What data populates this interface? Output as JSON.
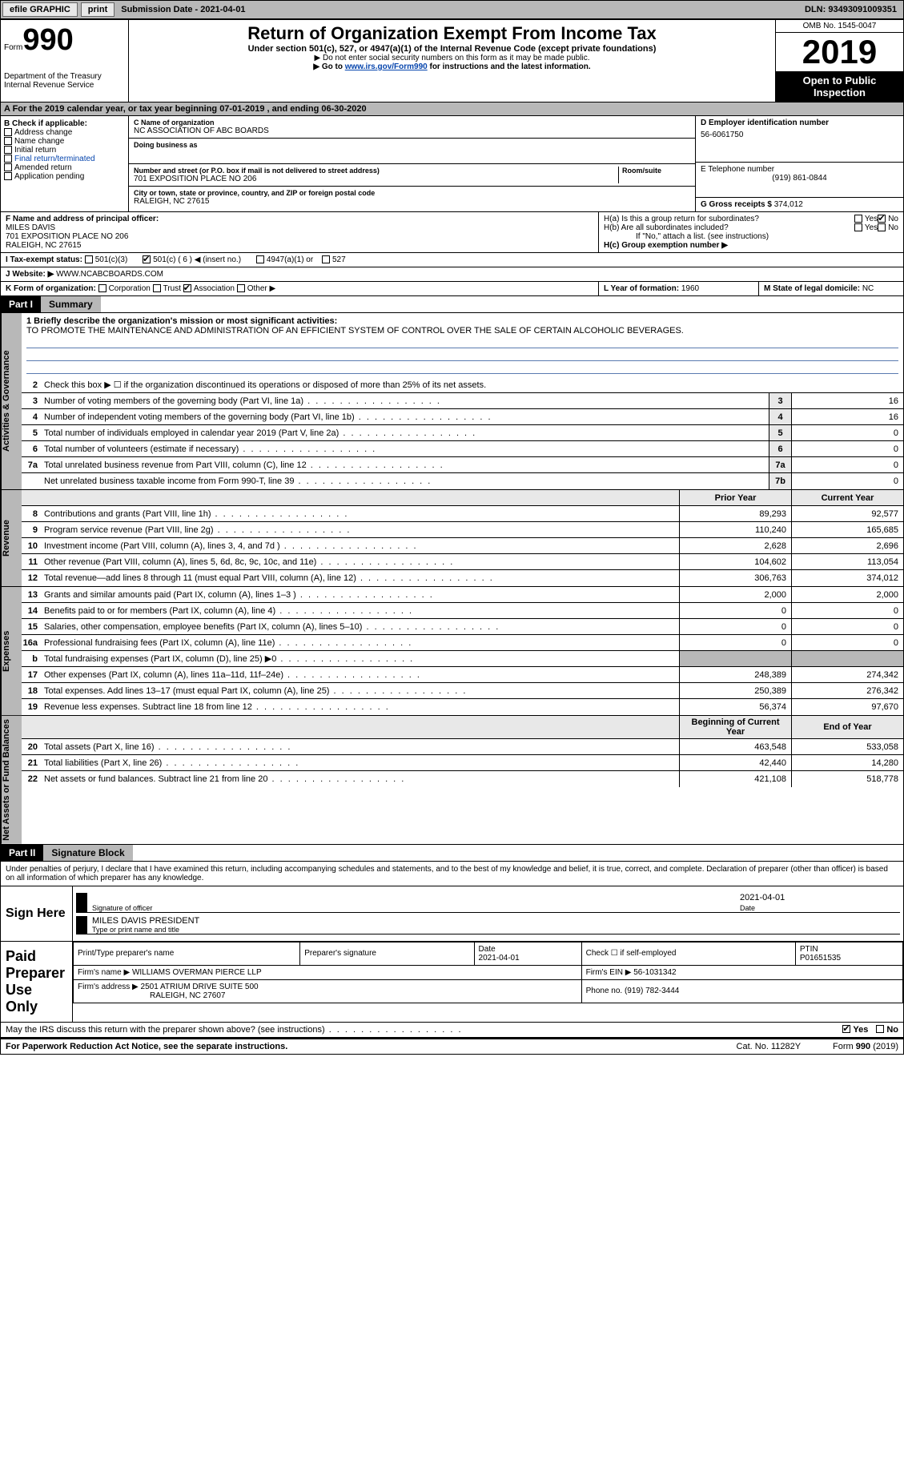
{
  "topbar": {
    "efile": "efile GRAPHIC",
    "print": "print",
    "submission_label": "Submission Date - ",
    "submission_date": "2021-04-01",
    "dln_label": "DLN: ",
    "dln": "93493091009351"
  },
  "header": {
    "form_label": "Form",
    "form_num": "990",
    "title": "Return of Organization Exempt From Income Tax",
    "subtitle": "Under section 501(c), 527, or 4947(a)(1) of the Internal Revenue Code (except private foundations)",
    "note1": "▶ Do not enter social security numbers on this form as it may be made public.",
    "note2_pre": "▶ Go to ",
    "note2_link": "www.irs.gov/Form990",
    "note2_post": " for instructions and the latest information.",
    "omb": "OMB No. 1545-0047",
    "year": "2019",
    "open_pub": "Open to Public Inspection",
    "dept": "Department of the Treasury\nInternal Revenue Service"
  },
  "a_row": "A For the 2019 calendar year, or tax year beginning 07-01-2019   , and ending 06-30-2020",
  "section_b": {
    "check_label": "B Check if applicable:",
    "checks": [
      "Address change",
      "Name change",
      "Initial return",
      "Final return/terminated",
      "Amended return",
      "Application pending"
    ],
    "c_label": "C Name of organization",
    "org_name": "NC ASSOCIATION OF ABC BOARDS",
    "dba_label": "Doing business as",
    "addr_label": "Number and street (or P.O. box if mail is not delivered to street address)",
    "room_label": "Room/suite",
    "addr": "701 EXPOSITION PLACE NO 206",
    "city_label": "City or town, state or province, country, and ZIP or foreign postal code",
    "city": "RALEIGH, NC  27615",
    "d_label": "D Employer identification number",
    "ein": "56-6061750",
    "e_label": "E Telephone number",
    "phone": "(919) 861-0844",
    "g_label": "G Gross receipts $ ",
    "gross": "374,012"
  },
  "fh": {
    "f_label": "F Name and address of principal officer:",
    "officer": "MILES DAVIS",
    "officer_addr1": "701 EXPOSITION PLACE NO 206",
    "officer_addr2": "RALEIGH, NC  27615",
    "ha_label": "H(a)  Is this a group return for subordinates?",
    "hb_label": "H(b)  Are all subordinates included?",
    "hb_note": "If \"No,\" attach a list. (see instructions)",
    "hc_label": "H(c)  Group exemption number ▶",
    "yes": "Yes",
    "no": "No"
  },
  "row_i": {
    "label": "I    Tax-exempt status:",
    "o1": "501(c)(3)",
    "o2": "501(c) ( 6 ) ◀ (insert no.)",
    "o3": "4947(a)(1) or",
    "o4": "527"
  },
  "row_j": {
    "label": "J   Website: ▶ ",
    "val": "WWW.NCABCBOARDS.COM"
  },
  "row_k": {
    "label": "K Form of organization:",
    "o1": "Corporation",
    "o2": "Trust",
    "o3": "Association",
    "o4": "Other ▶",
    "l_label": "L Year of formation: ",
    "l_val": "1960",
    "m_label": "M State of legal domicile: ",
    "m_val": "NC"
  },
  "part1": {
    "hdr": "Part I",
    "title": "Summary"
  },
  "mission": {
    "label": "1   Briefly describe the organization's mission or most significant activities:",
    "text": "TO PROMOTE THE MAINTENANCE AND ADMINISTRATION OF AN EFFICIENT SYSTEM OF CONTROL OVER THE SALE OF CERTAIN ALCOHOLIC BEVERAGES."
  },
  "line2": "Check this box ▶ ☐  if the organization discontinued its operations or disposed of more than 25% of its net assets.",
  "vtabs": {
    "gov": "Activities & Governance",
    "rev": "Revenue",
    "exp": "Expenses",
    "net": "Net Assets or Fund Balances"
  },
  "gov_lines": [
    {
      "n": "3",
      "t": "Number of voting members of the governing body (Part VI, line 1a)",
      "box": "3",
      "v": "16"
    },
    {
      "n": "4",
      "t": "Number of independent voting members of the governing body (Part VI, line 1b)",
      "box": "4",
      "v": "16"
    },
    {
      "n": "5",
      "t": "Total number of individuals employed in calendar year 2019 (Part V, line 2a)",
      "box": "5",
      "v": "0"
    },
    {
      "n": "6",
      "t": "Total number of volunteers (estimate if necessary)",
      "box": "6",
      "v": "0"
    },
    {
      "n": "7a",
      "t": "Total unrelated business revenue from Part VIII, column (C), line 12",
      "box": "7a",
      "v": "0"
    },
    {
      "n": "",
      "t": "Net unrelated business taxable income from Form 990-T, line 39",
      "box": "7b",
      "v": "0"
    }
  ],
  "col_hdrs": {
    "prior": "Prior Year",
    "current": "Current Year"
  },
  "rev_lines": [
    {
      "n": "8",
      "t": "Contributions and grants (Part VIII, line 1h)",
      "p": "89,293",
      "c": "92,577"
    },
    {
      "n": "9",
      "t": "Program service revenue (Part VIII, line 2g)",
      "p": "110,240",
      "c": "165,685"
    },
    {
      "n": "10",
      "t": "Investment income (Part VIII, column (A), lines 3, 4, and 7d )",
      "p": "2,628",
      "c": "2,696"
    },
    {
      "n": "11",
      "t": "Other revenue (Part VIII, column (A), lines 5, 6d, 8c, 9c, 10c, and 11e)",
      "p": "104,602",
      "c": "113,054"
    },
    {
      "n": "12",
      "t": "Total revenue—add lines 8 through 11 (must equal Part VIII, column (A), line 12)",
      "p": "306,763",
      "c": "374,012"
    }
  ],
  "exp_lines": [
    {
      "n": "13",
      "t": "Grants and similar amounts paid (Part IX, column (A), lines 1–3 )",
      "p": "2,000",
      "c": "2,000"
    },
    {
      "n": "14",
      "t": "Benefits paid to or for members (Part IX, column (A), line 4)",
      "p": "0",
      "c": "0"
    },
    {
      "n": "15",
      "t": "Salaries, other compensation, employee benefits (Part IX, column (A), lines 5–10)",
      "p": "0",
      "c": "0"
    },
    {
      "n": "16a",
      "t": "Professional fundraising fees (Part IX, column (A), line 11e)",
      "p": "0",
      "c": "0"
    },
    {
      "n": "b",
      "t": "Total fundraising expenses (Part IX, column (D), line 25) ▶0",
      "p": "",
      "c": "",
      "shaded": true
    },
    {
      "n": "17",
      "t": "Other expenses (Part IX, column (A), lines 11a–11d, 11f–24e)",
      "p": "248,389",
      "c": "274,342"
    },
    {
      "n": "18",
      "t": "Total expenses. Add lines 13–17 (must equal Part IX, column (A), line 25)",
      "p": "250,389",
      "c": "276,342"
    },
    {
      "n": "19",
      "t": "Revenue less expenses. Subtract line 18 from line 12",
      "p": "56,374",
      "c": "97,670"
    }
  ],
  "net_hdrs": {
    "beg": "Beginning of Current Year",
    "end": "End of Year"
  },
  "net_lines": [
    {
      "n": "20",
      "t": "Total assets (Part X, line 16)",
      "p": "463,548",
      "c": "533,058"
    },
    {
      "n": "21",
      "t": "Total liabilities (Part X, line 26)",
      "p": "42,440",
      "c": "14,280"
    },
    {
      "n": "22",
      "t": "Net assets or fund balances. Subtract line 21 from line 20",
      "p": "421,108",
      "c": "518,778"
    }
  ],
  "part2": {
    "hdr": "Part II",
    "title": "Signature Block"
  },
  "penalties": "Under penalties of perjury, I declare that I have examined this return, including accompanying schedules and statements, and to the best of my knowledge and belief, it is true, correct, and complete. Declaration of preparer (other than officer) is based on all information of which preparer has any knowledge.",
  "sign": {
    "label": "Sign Here",
    "sig_of_officer": "Signature of officer",
    "date_label": "Date",
    "date": "2021-04-01",
    "name": "MILES DAVIS  PRESIDENT",
    "name_label": "Type or print name and title"
  },
  "preparer": {
    "label": "Paid Preparer Use Only",
    "h1": "Print/Type preparer's name",
    "h2": "Preparer's signature",
    "h3": "Date",
    "h3v": "2021-04-01",
    "h4": "Check ☐ if self-employed",
    "h5": "PTIN",
    "h5v": "P01651535",
    "firm_label": "Firm's name    ▶",
    "firm": "WILLIAMS OVERMAN PIERCE LLP",
    "ein_label": "Firm's EIN ▶",
    "ein": "56-1031342",
    "addr_label": "Firm's address ▶",
    "addr": "2501 ATRIUM DRIVE SUITE 500",
    "addr2": "RALEIGH, NC  27607",
    "ph_label": "Phone no. ",
    "ph": "(919) 782-3444"
  },
  "footer": {
    "q": "May the IRS discuss this return with the preparer shown above? (see instructions)",
    "yes": "Yes",
    "no": "No",
    "pra": "For Paperwork Reduction Act Notice, see the separate instructions.",
    "cat": "Cat. No. 11282Y",
    "form": "Form 990 (2019)"
  }
}
